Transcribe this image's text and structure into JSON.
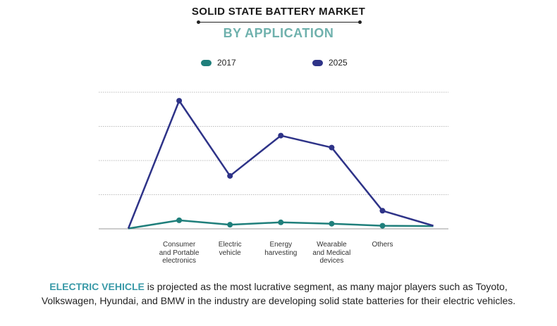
{
  "title": "SOLID STATE BATTERY MARKET",
  "subtitle": "BY APPLICATION",
  "colors": {
    "series_2017": "#1f7f7b",
    "series_2025": "#2e3388",
    "subtitle": "#6fb1ad",
    "caption_lead": "#3a9aa8",
    "grid": "#bdbdbd"
  },
  "legend": [
    {
      "label": "2017",
      "color": "#1f7f7b"
    },
    {
      "label": "2025",
      "color": "#2e3388"
    }
  ],
  "chart_data": {
    "type": "line",
    "categories": [
      "",
      "Consumer\nand Portable\nelectronics",
      "Electric\nvehicle",
      "Energy\nharvesting",
      "Wearable\nand Medical\ndevices",
      "Others",
      ""
    ],
    "series": [
      {
        "name": "2017",
        "values": [
          0.1,
          2.5,
          1.2,
          1.9,
          1.5,
          0.9,
          0.8
        ]
      },
      {
        "name": "2025",
        "values": [
          0.1,
          37.5,
          15.5,
          27.3,
          23.8,
          5.3,
          0.9
        ]
      }
    ],
    "ylim": [
      0,
      40
    ],
    "grid": true,
    "xlabel": "",
    "ylabel": ""
  },
  "caption": {
    "lead": "ELECTRIC VEHICLE",
    "line1_rest": " is projected as the most lucrative segment, as many major players such as Toyoto,",
    "line2": "Volkswagen, Hyundai, and BMW in the industry are developing solid state batteries for their electric vehicles."
  }
}
